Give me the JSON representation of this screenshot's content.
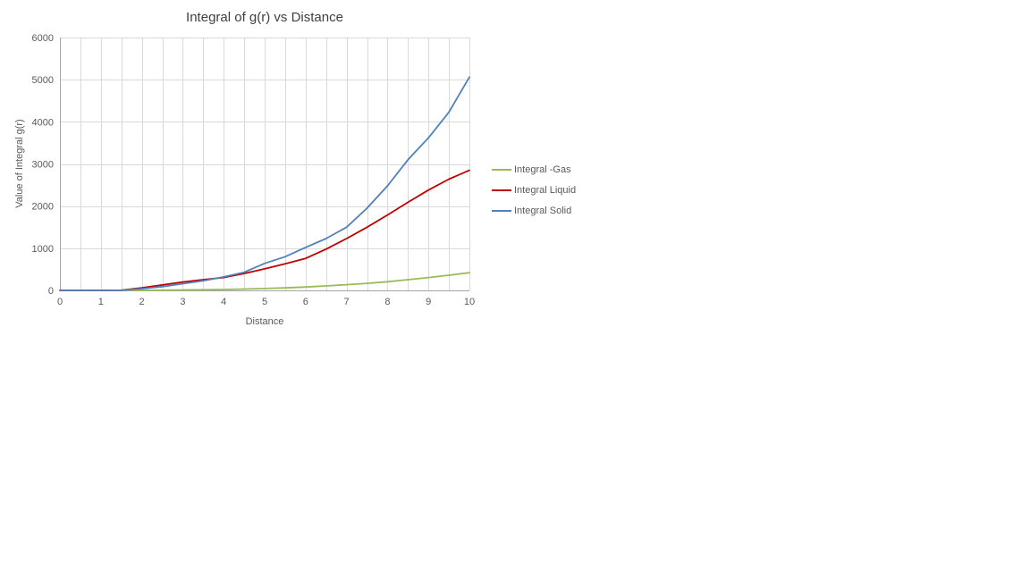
{
  "page": {
    "background": "#ffffff"
  },
  "chart_data": {
    "type": "line",
    "title": "Integral of g(r) vs Distance",
    "xlabel": "Distance",
    "ylabel": "Value of Integral g(r)",
    "xlim": [
      0,
      10
    ],
    "ylim": [
      0,
      6000
    ],
    "x_ticks": [
      0,
      1,
      2,
      3,
      4,
      5,
      6,
      7,
      8,
      9,
      10
    ],
    "y_ticks": [
      0,
      1000,
      2000,
      3000,
      4000,
      5000,
      6000
    ],
    "grid": {
      "vertical_minor_step": 0.5,
      "horizontal_major_step": 1000,
      "gridline_color": "#d9d9d9",
      "axis_line_color": "#a6a6a6",
      "text_color": "#595959",
      "title_color": "#404040"
    },
    "legend_position": "right",
    "x": [
      0,
      0.5,
      1,
      1.5,
      2,
      2.5,
      3,
      3.5,
      4,
      4.5,
      5,
      5.5,
      6,
      6.5,
      7,
      7.5,
      8,
      8.5,
      9,
      9.5,
      10
    ],
    "series": [
      {
        "name": "Integral -Gas",
        "color": "#9bbb59",
        "values": [
          0,
          0,
          0,
          0,
          2,
          5,
          10,
          15,
          22,
          32,
          45,
          60,
          80,
          105,
          135,
          168,
          205,
          255,
          305,
          360,
          420
        ]
      },
      {
        "name": "Integral Liquid",
        "color": "#c00000",
        "values": [
          0,
          0,
          0,
          5,
          60,
          130,
          200,
          255,
          305,
          400,
          510,
          630,
          760,
          980,
          1230,
          1500,
          1790,
          2090,
          2380,
          2640,
          2850
        ]
      },
      {
        "name": "Integral Solid",
        "color": "#4f81bd",
        "values": [
          0,
          0,
          0,
          5,
          40,
          90,
          160,
          230,
          320,
          430,
          640,
          800,
          1020,
          1230,
          1500,
          1950,
          2480,
          3100,
          3620,
          4230,
          5060
        ]
      }
    ]
  }
}
